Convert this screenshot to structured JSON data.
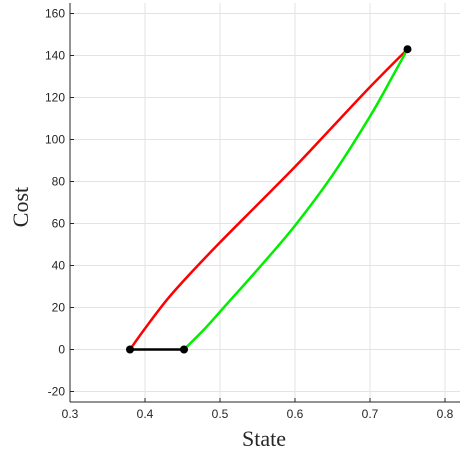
{
  "chart_data": {
    "type": "line",
    "title": "",
    "xlabel": "State",
    "ylabel": "Cost",
    "xlim": [
      0.3,
      0.82
    ],
    "ylim": [
      -25,
      165
    ],
    "xticks": [
      0.3,
      0.4,
      0.5,
      0.6,
      0.7,
      0.8
    ],
    "xtick_labels": [
      "0.3",
      "0.4",
      "0.5",
      "0.6",
      "0.7",
      "0.8"
    ],
    "yticks": [
      -20,
      0,
      20,
      40,
      60,
      80,
      100,
      120,
      140,
      160
    ],
    "ytick_labels": [
      "-20",
      "0",
      "20",
      "40",
      "60",
      "80",
      "100",
      "120",
      "140",
      "160"
    ],
    "grid": true,
    "series": [
      {
        "color": "#ff0000",
        "x": [
          0.38,
          0.4,
          0.43,
          0.46,
          0.5,
          0.55,
          0.6,
          0.65,
          0.7,
          0.75
        ],
        "y": [
          0,
          10,
          24,
          36,
          51,
          69,
          87,
          106,
          125,
          143
        ]
      },
      {
        "color": "#00ee00",
        "x": [
          0.452,
          0.48,
          0.51,
          0.55,
          0.6,
          0.65,
          0.7,
          0.73,
          0.75
        ],
        "y": [
          0,
          10,
          22,
          38,
          59,
          83,
          111,
          130,
          143
        ]
      },
      {
        "color": "#000000",
        "x": [
          0.38,
          0.452
        ],
        "y": [
          0,
          0
        ]
      }
    ],
    "markers": {
      "color": "#000000",
      "x": [
        0.38,
        0.452,
        0.75
      ],
      "y": [
        0,
        0,
        143
      ]
    }
  }
}
